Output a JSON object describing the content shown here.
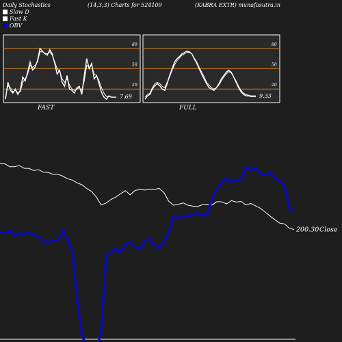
{
  "header": {
    "indicator": "Daily Stochastics",
    "params": "(14,3,3) Charts for 524109",
    "company": "(KABRA EXTR) munafasutra.in"
  },
  "legend": [
    {
      "label": "Slow  D",
      "color": "#ffffff"
    },
    {
      "label": "Fast K",
      "color": "#ffffff"
    },
    {
      "label": "OBV",
      "color": "#0000cc"
    }
  ],
  "colors": {
    "background": "#1e1e1e",
    "panel": "#2a2a2a",
    "level_line": "#c8781e",
    "stoch_line": "#ffffff",
    "price_line": "#ffffff",
    "obv_line": "#0b0bb4"
  },
  "chart_data": [
    {
      "type": "line",
      "title": "FAST",
      "ylim": [
        0,
        100
      ],
      "y_ticks": [
        "80",
        "50",
        "20"
      ],
      "levels": [
        80,
        50,
        20
      ],
      "last_value_label": "7.69",
      "series": [
        {
          "values": [
            5,
            30,
            18,
            14,
            20,
            12,
            18,
            38,
            32,
            45,
            60,
            48,
            52,
            62,
            80,
            76,
            72,
            70,
            78,
            72,
            58,
            42,
            48,
            30,
            24,
            40,
            20,
            18,
            14,
            22,
            24,
            12,
            40,
            65,
            50,
            58,
            35,
            40,
            28,
            15,
            8,
            5,
            10,
            8,
            8,
            8
          ]
        },
        {
          "values": [
            8,
            25,
            22,
            16,
            18,
            15,
            16,
            30,
            35,
            42,
            55,
            52,
            55,
            60,
            75,
            75,
            73,
            72,
            75,
            70,
            60,
            50,
            46,
            35,
            30,
            35,
            26,
            20,
            18,
            20,
            22,
            18,
            32,
            55,
            52,
            55,
            42,
            40,
            32,
            22,
            14,
            9,
            9,
            8,
            8,
            8
          ]
        }
      ]
    },
    {
      "type": "line",
      "title": "FULL",
      "ylim": [
        0,
        100
      ],
      "y_ticks": [
        "80",
        "50",
        "20"
      ],
      "levels": [
        80,
        50,
        20
      ],
      "last_value_label": "9.33",
      "series": [
        {
          "values": [
            5,
            10,
            12,
            20,
            25,
            28,
            25,
            20,
            18,
            28,
            40,
            50,
            60,
            65,
            68,
            72,
            74,
            76,
            75,
            72,
            65,
            58,
            50,
            42,
            35,
            28,
            22,
            20,
            18,
            22,
            28,
            35,
            40,
            45,
            48,
            45,
            38,
            30,
            22,
            16,
            12,
            10,
            10,
            9,
            9,
            9
          ]
        },
        {
          "values": [
            8,
            12,
            14,
            22,
            28,
            30,
            28,
            24,
            22,
            30,
            38,
            48,
            56,
            62,
            66,
            70,
            72,
            74,
            74,
            72,
            66,
            60,
            52,
            45,
            38,
            30,
            26,
            22,
            20,
            22,
            26,
            32,
            38,
            42,
            46,
            44,
            38,
            32,
            24,
            18,
            14,
            12,
            11,
            10,
            10,
            10
          ]
        }
      ]
    },
    {
      "type": "line",
      "title": "",
      "last_value_label": "200.30",
      "last_value_suffix": "Close",
      "series": [
        {
          "values": [
            12.0,
            12.0,
            13.5,
            13.5,
            12.9,
            14.3,
            14.4,
            15.4,
            15.0,
            16.3,
            16.4,
            17.4,
            17.3,
            18.3,
            19.6,
            20.3,
            21.7,
            22.7,
            24.6,
            26.1,
            29.0,
            33.0,
            32.0,
            30.2,
            29.0,
            27.3,
            25.7,
            27.8,
            25.6,
            25.1,
            25.4,
            24.9,
            25.1,
            24.5,
            26.7,
            31.1,
            33.1,
            32.6,
            32.0,
            33.1,
            33.6,
            33.8,
            32.8,
            32.6,
            33.0,
            31.3,
            31.4,
            32.4,
            30.8,
            31.5,
            31.2,
            33.0,
            32.2,
            33.4,
            34.7,
            36.6,
            38.6,
            40.5,
            42.2,
            42.6,
            44.8,
            45.5
          ]
        },
        {
          "values": [
            47.0,
            47.3,
            46.1,
            48.7,
            47.3,
            48.3,
            46.8,
            48.4,
            49.1,
            51.6,
            52.3,
            50.6,
            51.5,
            45.7,
            50.6,
            57.1,
            81.6,
            99.0,
            130.0,
            135.0,
            135.0,
            98.0,
            58.6,
            57.1,
            55.3,
            57.3,
            53.0,
            51.8,
            54.6,
            55.4,
            51.7,
            49.8,
            54.1,
            54.9,
            51.9,
            46.3,
            38.5,
            39.8,
            38.4,
            38.8,
            37.8,
            37.0,
            38.6,
            37.4,
            29.2,
            25.1,
            21.0,
            19.4,
            21.2,
            20.1,
            20.6,
            13.6,
            15.3,
            14.1,
            17.0,
            17.7,
            16.4,
            19.7,
            20.7,
            23.6,
            34.4,
            36.8
          ]
        }
      ]
    }
  ]
}
